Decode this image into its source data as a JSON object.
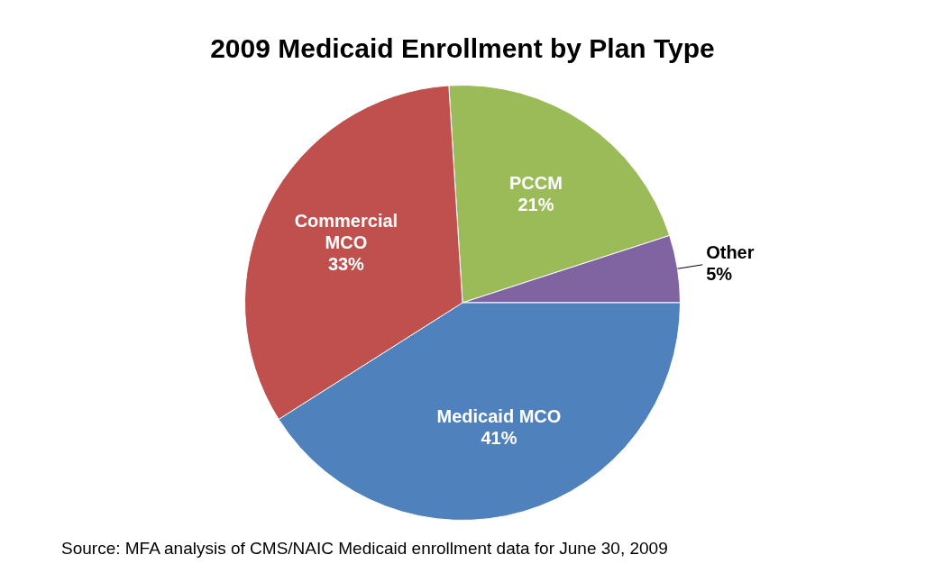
{
  "chart_data": {
    "type": "pie",
    "title": "2009 Medicaid Enrollment by Plan Type",
    "categories": [
      "PCCM",
      "Other",
      "Medicaid MCO",
      "Commercial MCO"
    ],
    "values": [
      21,
      5,
      41,
      33
    ],
    "colors": [
      "#9bbb59",
      "#8064a2",
      "#4f81bd",
      "#c0504d"
    ],
    "value_labels": [
      "21%",
      "5%",
      "41%",
      "33%"
    ],
    "legend": false,
    "annotations": [
      "Source: MFA analysis of CMS/NAIC Medicaid enrollment data for June 30, 2009"
    ]
  }
}
